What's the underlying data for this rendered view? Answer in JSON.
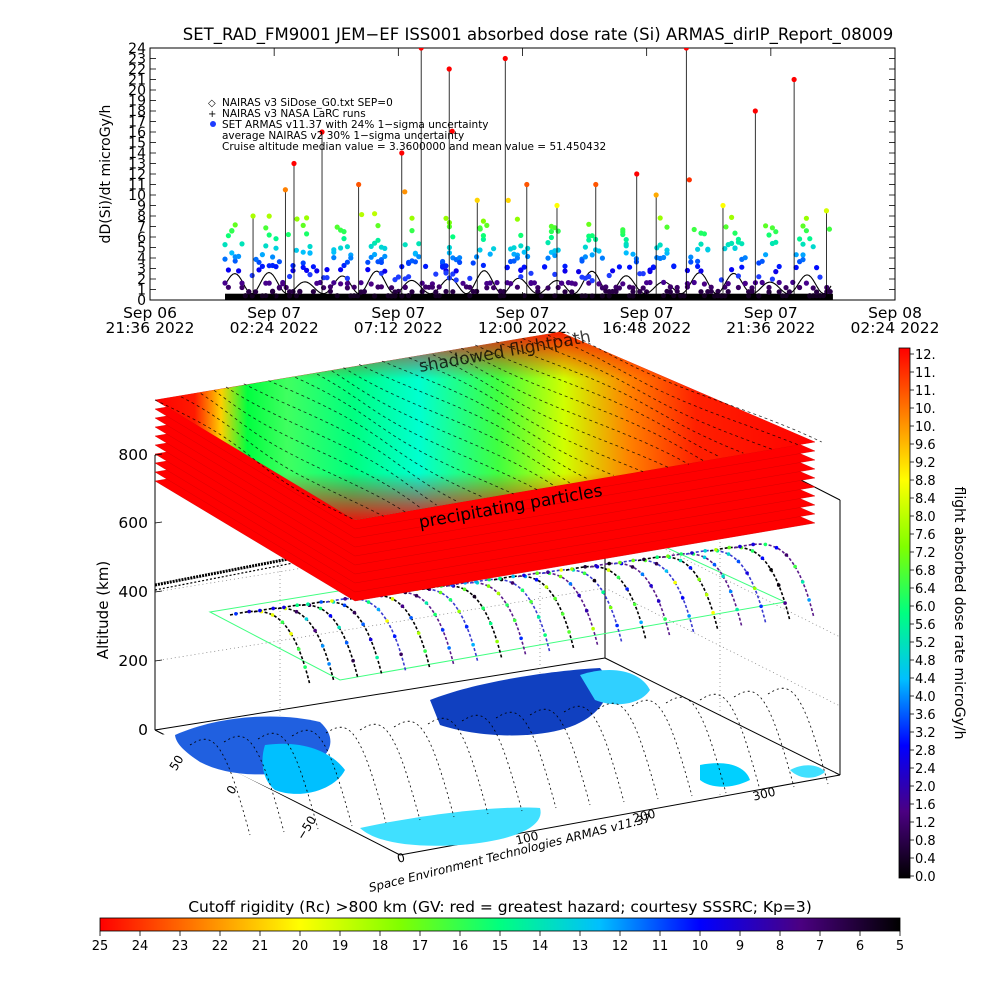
{
  "chart_data": [
    {
      "type": "scatter",
      "title": "SET_RAD_FM9001  JEM−EF ISS001 absorbed dose rate (Si) ARMAS_dirIP_Report_08009",
      "ylabel": "dD(Si)/dt microGy/h",
      "ylim": [
        0,
        24
      ],
      "y_ticks": [
        "0",
        "1",
        "2",
        "3",
        "4",
        "5",
        "6",
        "7",
        "8",
        "9",
        "10",
        "11",
        "12",
        "13",
        "14",
        "15",
        "16",
        "17",
        "18",
        "19",
        "20",
        "21",
        "22",
        "23",
        "24"
      ],
      "x_ticks": [
        {
          "line1": "Sep 06",
          "line2": "21:36 2022"
        },
        {
          "line1": "Sep 07",
          "line2": "02:24 2022"
        },
        {
          "line1": "Sep 07",
          "line2": "07:12 2022"
        },
        {
          "line1": "Sep 07",
          "line2": "12:00 2022"
        },
        {
          "line1": "Sep 07",
          "line2": "16:48 2022"
        },
        {
          "line1": "Sep 07",
          "line2": "21:36 2022"
        },
        {
          "line1": "Sep 08",
          "line2": "02:24 2022"
        }
      ],
      "xlim": [
        "2022-09-06 21:36",
        "2022-09-08 02:24"
      ],
      "data_xlim": [
        "2022-09-07 00:30",
        "2022-09-08 00:00"
      ],
      "legend": [
        {
          "symbol": "diamond",
          "text": "NAIRAS v3 SiDose_G0.txt SEP=0"
        },
        {
          "symbol": "plus",
          "text": "NAIRAS v3 NASA LaRC runs"
        },
        {
          "symbol": "dot-blue",
          "text": "SET ARMAS v11.37 with 24% 1−sigma uncertainty"
        },
        {
          "symbol": "none",
          "text": "average NAIRAS v2 30% 1−sigma uncertainty"
        },
        {
          "symbol": "none",
          "text": "Cruise altitude median value = 3.3600000 and mean value = 51.450432"
        }
      ],
      "series": [
        {
          "name": "NAIRAS v3 SiDose_G0.txt SEP=0",
          "color": "#000000",
          "baseline": 0.6,
          "amplitude": 2.2
        },
        {
          "name": "SET ARMAS v11.37 with 24% 1−sigma uncertainty",
          "color": "#1e3cff",
          "levels": [
            0.4,
            0.8,
            1.2,
            1.6,
            2.0,
            2.4,
            2.8,
            3.2,
            3.6,
            4.0,
            4.4,
            4.8,
            5.2,
            5.6,
            6.0,
            6.4,
            6.8,
            7.2,
            7.6
          ]
        }
      ],
      "spikes": [
        {
          "t": "2022-09-07 01:35",
          "v": 8.0
        },
        {
          "t": "2022-09-07 02:50",
          "v": 10.5
        },
        {
          "t": "2022-09-07 03:10",
          "v": 13.0
        },
        {
          "t": "2022-09-07 04:15",
          "v": 16.0
        },
        {
          "t": "2022-09-07 05:40",
          "v": 11.0
        },
        {
          "t": "2022-09-07 07:20",
          "v": 14.0
        },
        {
          "t": "2022-09-07 08:05",
          "v": 24.0
        },
        {
          "t": "2022-09-07 09:10",
          "v": 22.0
        },
        {
          "t": "2022-09-07 10:15",
          "v": 9.5
        },
        {
          "t": "2022-09-07 11:20",
          "v": 23.0
        },
        {
          "t": "2022-09-07 12:10",
          "v": 11.0
        },
        {
          "t": "2022-09-07 13:20",
          "v": 9.0
        },
        {
          "t": "2022-09-07 14:50",
          "v": 11.0
        },
        {
          "t": "2022-09-07 16:25",
          "v": 12.0
        },
        {
          "t": "2022-09-07 17:10",
          "v": 10.0
        },
        {
          "t": "2022-09-07 18:20",
          "v": 24.0
        },
        {
          "t": "2022-09-07 19:45",
          "v": 9.0
        },
        {
          "t": "2022-09-07 21:00",
          "v": 18.0
        },
        {
          "t": "2022-09-07 22:30",
          "v": 21.0
        },
        {
          "t": "2022-09-07 23:45",
          "v": 8.5
        }
      ]
    },
    {
      "type": "3d-trajectory",
      "zlabel": "Altitude (km)",
      "z_ticks": [
        "0",
        "200",
        "400",
        "600",
        "800"
      ],
      "latitude_ticks": [
        "−50",
        "0",
        "50"
      ],
      "longitude_ticks": [
        "0",
        "100",
        "200",
        "300"
      ],
      "annotations": [
        "shadowed flightpath",
        "precipitating particles"
      ],
      "credit": "Space Environment Technologies ARMAS v11.37",
      "colorbar": {
        "label": "flight absorbed dose rate microGy/h",
        "ticks": [
          "0.0",
          "0.4",
          "0.8",
          "1.2",
          "1.6",
          "2.0",
          "2.4",
          "2.8",
          "3.2",
          "3.6",
          "4.0",
          "4.4",
          "4.8",
          "5.2",
          "5.6",
          "6.0",
          "6.4",
          "6.8",
          "7.2",
          "7.6",
          "8.0",
          "8.4",
          "8.8",
          "9.2",
          "9.6",
          "10.",
          "10.",
          "11.",
          "11.",
          "12."
        ],
        "colors": [
          "#000000",
          "#4b0082",
          "#0000ff",
          "#00bfff",
          "#00ff80",
          "#80ff00",
          "#ffff00",
          "#ff8000",
          "#ff0000"
        ]
      },
      "rigidity_colorbar": {
        "title": "Cutoff rigidity (Rc) >800 km (GV: red = greatest hazard; courtesy SSSRC; Kp=3)",
        "ticks": [
          "25",
          "24",
          "23",
          "22",
          "21",
          "20",
          "19",
          "18",
          "17",
          "16",
          "15",
          "14",
          "13",
          "12",
          "11",
          "10",
          "9",
          "8",
          "7",
          "6",
          "5"
        ],
        "colors": [
          "#000000",
          "#4b0082",
          "#0000ff",
          "#00bfff",
          "#00ff80",
          "#80ff00",
          "#ffff00",
          "#ff8000",
          "#ff0000"
        ]
      }
    }
  ]
}
